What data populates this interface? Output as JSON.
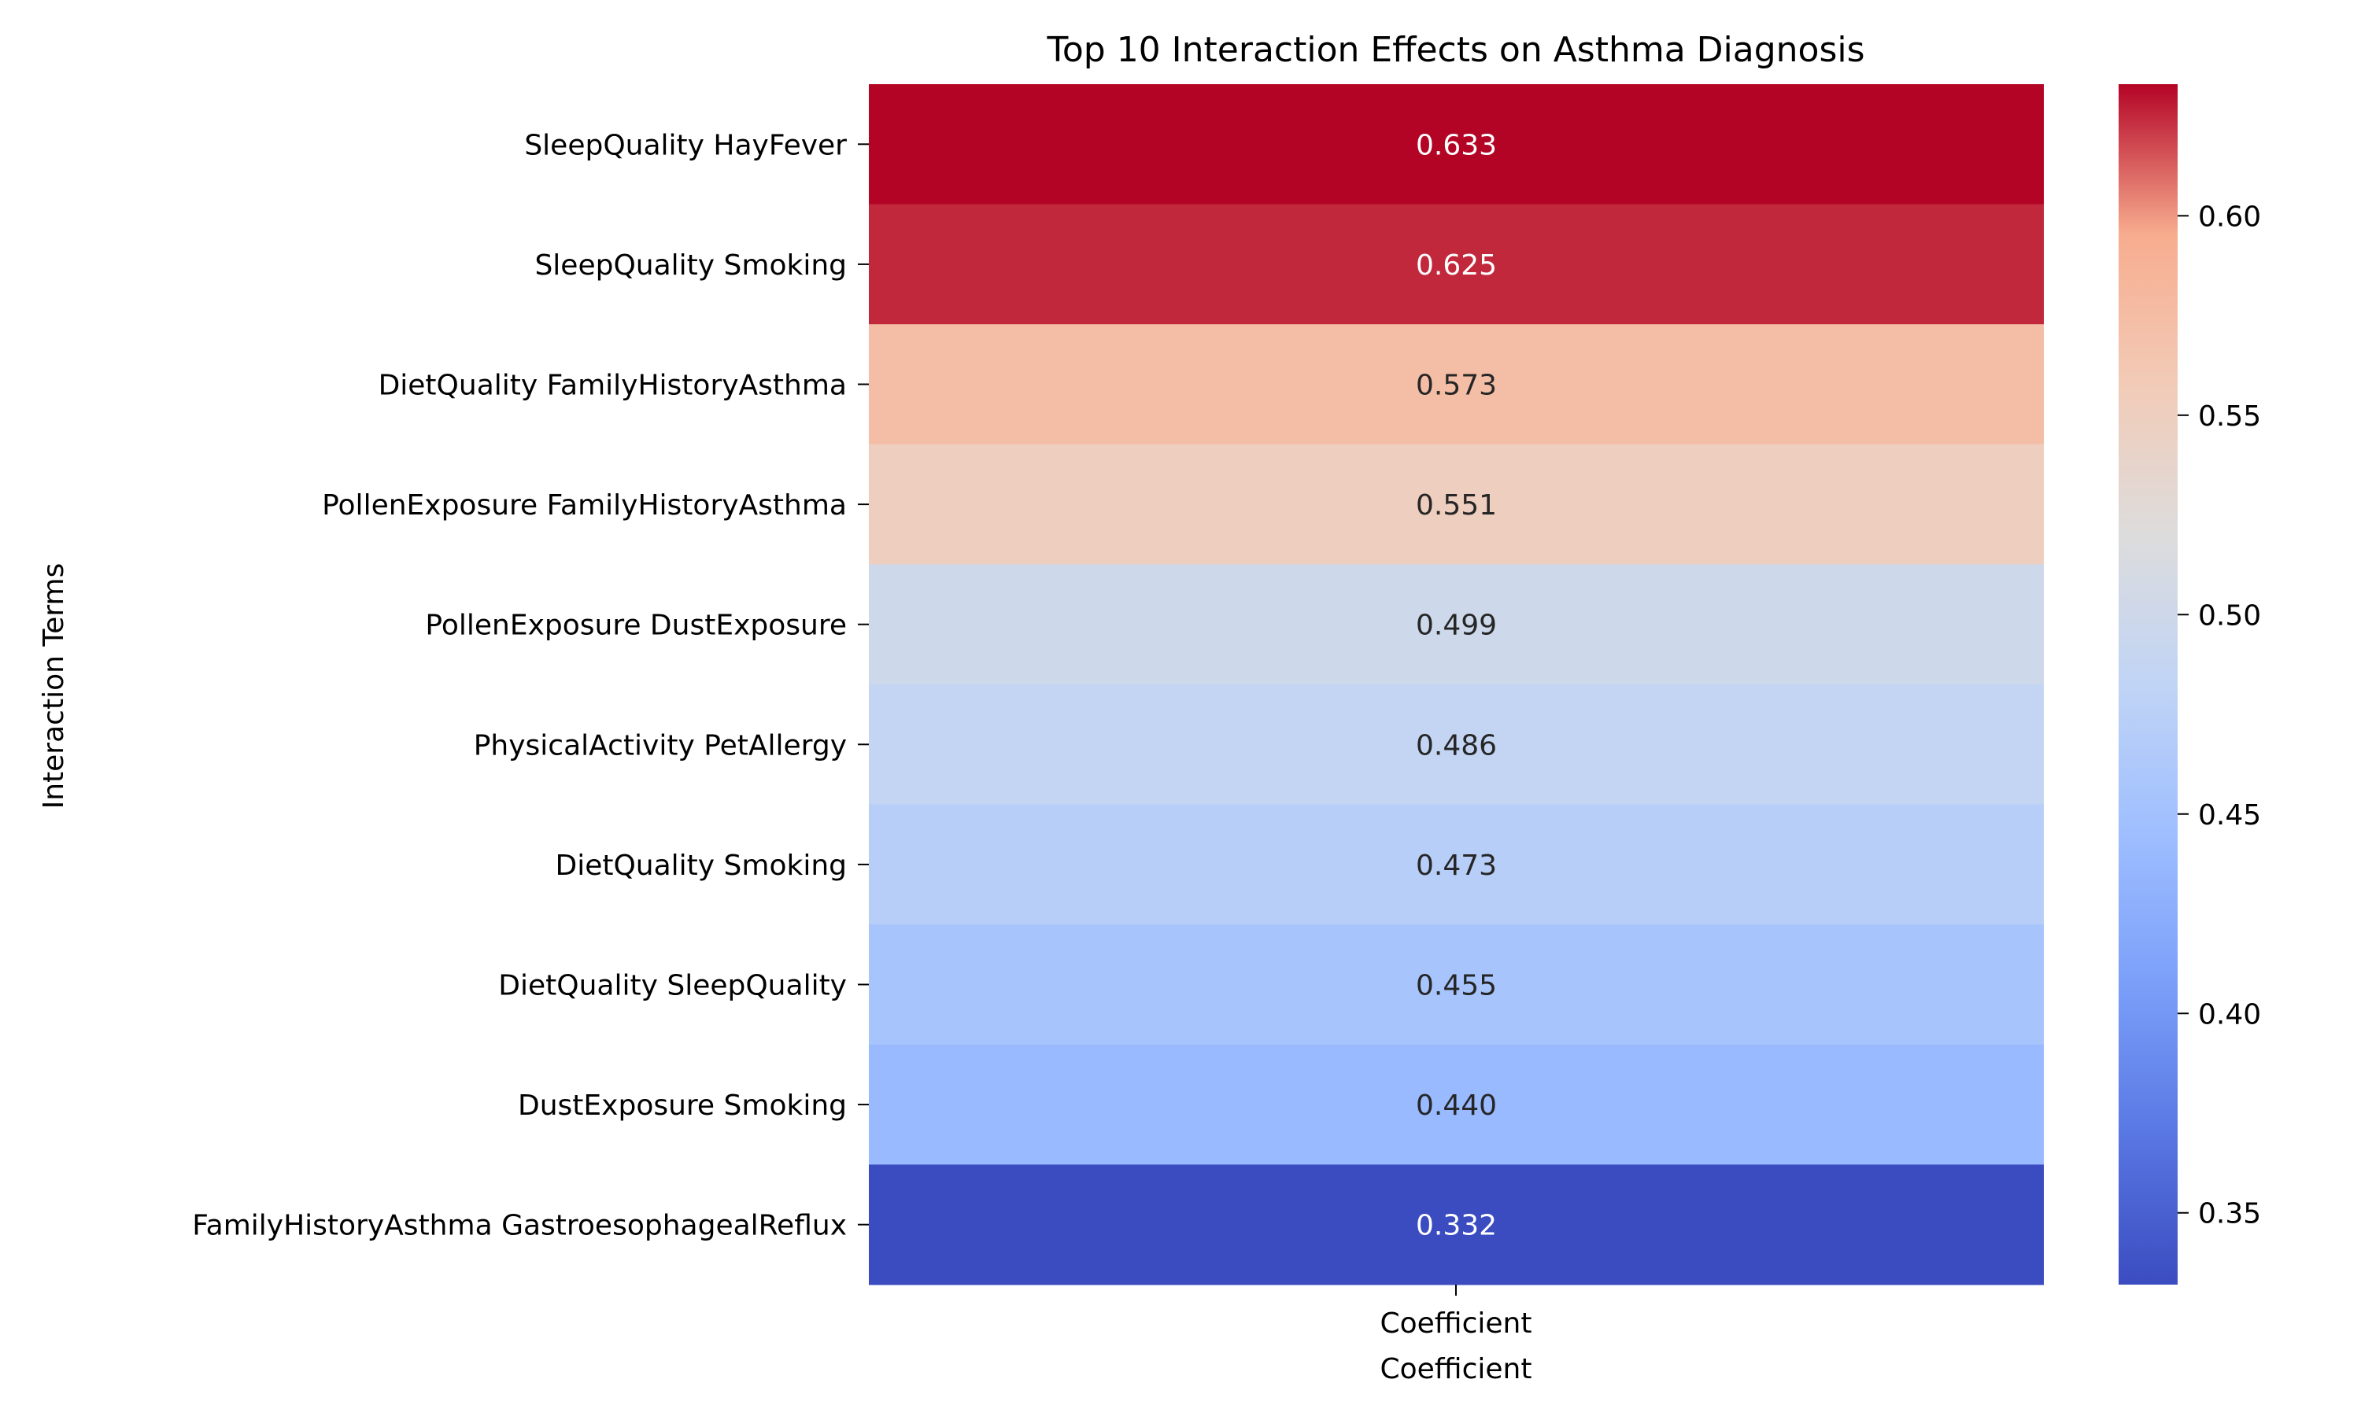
{
  "chart_data": {
    "type": "heatmap",
    "title": "Top 10 Interaction Effects on Asthma Diagnosis",
    "ylabel": "Interaction Terms",
    "xlabel": "Coefficient",
    "x_categories": [
      "Coefficient"
    ],
    "rows": [
      "SleepQuality HayFever",
      "SleepQuality Smoking",
      "DietQuality FamilyHistoryAsthma",
      "PollenExposure FamilyHistoryAsthma",
      "PollenExposure DustExposure",
      "PhysicalActivity PetAllergy",
      "DietQuality Smoking",
      "DietQuality SleepQuality",
      "DustExposure Smoking",
      "FamilyHistoryAsthma GastroesophagealReflux"
    ],
    "values": [
      0.633,
      0.625,
      0.573,
      0.551,
      0.499,
      0.486,
      0.473,
      0.455,
      0.44,
      0.332
    ],
    "value_labels": [
      "0.633",
      "0.625",
      "0.573",
      "0.551",
      "0.499",
      "0.486",
      "0.473",
      "0.455",
      "0.440",
      "0.332"
    ],
    "colorbar": {
      "colormap": "coolwarm",
      "vmin": 0.332,
      "vmax": 0.633,
      "ticks": [
        0.35,
        0.4,
        0.45,
        0.5,
        0.55,
        0.6
      ],
      "tick_labels": [
        "0.35",
        "0.40",
        "0.45",
        "0.50",
        "0.55",
        "0.60"
      ]
    }
  }
}
